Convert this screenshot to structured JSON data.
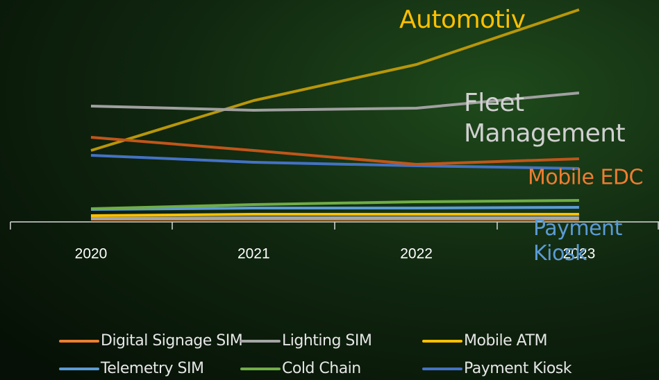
{
  "chart_data": {
    "type": "line",
    "categories": [
      "2020",
      "2021",
      "2022",
      "2023"
    ],
    "ylim": [
      0,
      320
    ],
    "series": [
      {
        "name": "Digital Signage SIM",
        "color": "#ed7d31",
        "values": [
          4,
          4,
          4,
          4
        ],
        "legend": true
      },
      {
        "name": "Lighting SIM",
        "color": "#a5a5a5",
        "values": [
          5,
          6,
          6,
          6
        ],
        "legend": true
      },
      {
        "name": "Mobile ATM",
        "color": "#ffc000",
        "values": [
          9,
          11,
          11,
          11
        ],
        "legend": true
      },
      {
        "name": "Telemetry SIM",
        "color": "#5b9bd5",
        "values": [
          18,
          20,
          20,
          21
        ],
        "legend": true
      },
      {
        "name": "Cold Chain",
        "color": "#70ad47",
        "values": [
          19,
          25,
          29,
          31
        ],
        "legend": true
      },
      {
        "name": "Payment Kiosk",
        "color": "#4472c4",
        "values": [
          96,
          86,
          81,
          77
        ],
        "legend": true,
        "end_label": true,
        "label_color": "#5b9bd5"
      },
      {
        "name": "Automotiv",
        "color": "#b8960a",
        "values": [
          103,
          175,
          227,
          306
        ],
        "legend": false,
        "end_label": true,
        "label_color": "#ffc000"
      },
      {
        "name": "Fleet Management",
        "color": "#a0a0a0",
        "values": [
          167,
          161,
          164,
          186
        ],
        "legend": false,
        "end_label": true,
        "label_color": "#d0d0d0"
      },
      {
        "name": "Mobile EDC",
        "color": "#c0561a",
        "values": [
          122,
          103,
          83,
          91
        ],
        "legend": false,
        "end_label": true,
        "label_color": "#ed7d31"
      }
    ]
  }
}
